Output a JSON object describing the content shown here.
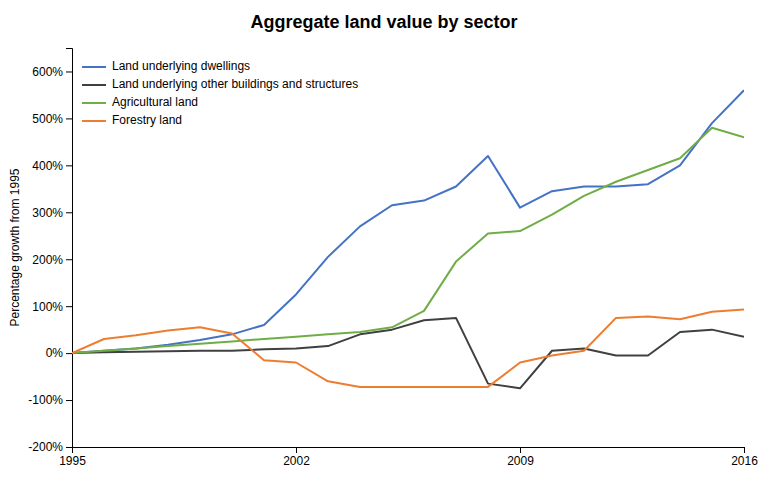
{
  "chart_data": {
    "type": "line",
    "title": "Aggregate land value by sector",
    "y_label": "Percentage growth from 1995",
    "x": [
      1995,
      1996,
      1997,
      1998,
      1999,
      2000,
      2001,
      2002,
      2003,
      2004,
      2005,
      2006,
      2007,
      2008,
      2009,
      2010,
      2011,
      2012,
      2013,
      2014,
      2015,
      2016
    ],
    "series": [
      {
        "name": "Land underlying dwellings",
        "color": "#4472C4",
        "values": [
          0,
          5,
          10,
          18,
          28,
          40,
          60,
          125,
          205,
          270,
          315,
          325,
          355,
          420,
          310,
          345,
          355,
          355,
          360,
          400,
          490,
          560
        ]
      },
      {
        "name": "Land underlying other buildings and structures",
        "color": "#404040",
        "values": [
          0,
          2,
          3,
          4,
          5,
          5,
          8,
          10,
          15,
          40,
          50,
          70,
          75,
          -65,
          -75,
          5,
          10,
          -5,
          -5,
          45,
          50,
          35
        ]
      },
      {
        "name": "Agricultural land",
        "color": "#70AD47",
        "values": [
          0,
          5,
          10,
          15,
          20,
          25,
          30,
          35,
          40,
          45,
          55,
          90,
          195,
          255,
          260,
          295,
          335,
          365,
          390,
          415,
          480,
          460
        ]
      },
      {
        "name": "Forestry land",
        "color": "#ED7D31",
        "values": [
          0,
          30,
          38,
          48,
          55,
          42,
          -15,
          -20,
          -60,
          -72,
          -72,
          -72,
          -72,
          -72,
          -20,
          -5,
          5,
          75,
          78,
          72,
          88,
          93
        ]
      }
    ],
    "xlim": [
      1995,
      2016
    ],
    "xticks": [
      1995,
      2002,
      2009,
      2016
    ],
    "ylim": [
      -200,
      650
    ],
    "yticks": [
      {
        "value": -200,
        "label": "-200%"
      },
      {
        "value": -100,
        "label": "-100%"
      },
      {
        "value": 0,
        "label": "0%"
      },
      {
        "value": 100,
        "label": "100%"
      },
      {
        "value": 200,
        "label": "200%"
      },
      {
        "value": 300,
        "label": "300%"
      },
      {
        "value": 400,
        "label": "400%"
      },
      {
        "value": 500,
        "label": "500%"
      },
      {
        "value": 600,
        "label": "600%"
      }
    ],
    "grid": false,
    "legend": "upper left"
  }
}
